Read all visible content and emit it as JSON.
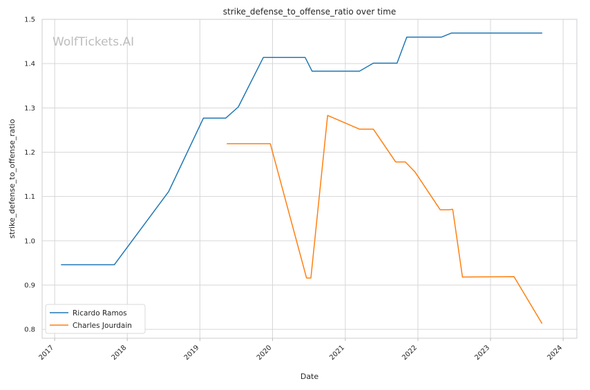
{
  "chart_data": {
    "type": "line",
    "title": "strike_defense_to_offense_ratio over time",
    "xlabel": "Date",
    "ylabel": "strike_defense_to_offense_ratio",
    "watermark": "WolfTickets.AI",
    "xlim": [
      "2016-10-30",
      "2024-03-10"
    ],
    "ylim": [
      0.78,
      1.5
    ],
    "x_ticks": [
      {
        "date": "2017-01-01",
        "label": "2017"
      },
      {
        "date": "2018-01-01",
        "label": "2018"
      },
      {
        "date": "2019-01-01",
        "label": "2019"
      },
      {
        "date": "2020-01-01",
        "label": "2020"
      },
      {
        "date": "2021-01-01",
        "label": "2021"
      },
      {
        "date": "2022-01-01",
        "label": "2022"
      },
      {
        "date": "2023-01-01",
        "label": "2023"
      },
      {
        "date": "2024-01-01",
        "label": "2024"
      }
    ],
    "y_ticks": [
      {
        "value": 0.8,
        "label": "0.8"
      },
      {
        "value": 0.9,
        "label": "0.9"
      },
      {
        "value": 1.0,
        "label": "1.0"
      },
      {
        "value": 1.1,
        "label": "1.1"
      },
      {
        "value": 1.2,
        "label": "1.2"
      },
      {
        "value": 1.3,
        "label": "1.3"
      },
      {
        "value": 1.4,
        "label": "1.4"
      },
      {
        "value": 1.5,
        "label": "1.5"
      }
    ],
    "grid": true,
    "legend_position": "bottom-left",
    "series": [
      {
        "name": "Ricardo Ramos",
        "color": "#1f77b4",
        "points": [
          {
            "x": "2017-02-04",
            "y": 0.946
          },
          {
            "x": "2017-10-28",
            "y": 0.946
          },
          {
            "x": "2018-07-28",
            "y": 1.111
          },
          {
            "x": "2019-01-19",
            "y": 1.277
          },
          {
            "x": "2019-05-11",
            "y": 1.277
          },
          {
            "x": "2019-07-13",
            "y": 1.302
          },
          {
            "x": "2019-11-16",
            "y": 1.414
          },
          {
            "x": "2020-06-13",
            "y": 1.414
          },
          {
            "x": "2020-07-18",
            "y": 1.383
          },
          {
            "x": "2021-03-13",
            "y": 1.383
          },
          {
            "x": "2021-05-22",
            "y": 1.401
          },
          {
            "x": "2021-09-18",
            "y": 1.401
          },
          {
            "x": "2021-11-06",
            "y": 1.46
          },
          {
            "x": "2022-04-30",
            "y": 1.46
          },
          {
            "x": "2022-06-18",
            "y": 1.469
          },
          {
            "x": "2023-09-16",
            "y": 1.469
          }
        ]
      },
      {
        "name": "Charles Jourdain",
        "color": "#ff7f0e",
        "points": [
          {
            "x": "2019-05-18",
            "y": 1.219
          },
          {
            "x": "2019-12-21",
            "y": 1.219
          },
          {
            "x": "2020-06-20",
            "y": 0.916
          },
          {
            "x": "2020-07-12",
            "y": 0.916
          },
          {
            "x": "2020-10-04",
            "y": 1.283
          },
          {
            "x": "2021-03-13",
            "y": 1.252
          },
          {
            "x": "2021-05-22",
            "y": 1.252
          },
          {
            "x": "2021-09-11",
            "y": 1.178
          },
          {
            "x": "2021-10-30",
            "y": 1.178
          },
          {
            "x": "2021-12-18",
            "y": 1.155
          },
          {
            "x": "2022-04-23",
            "y": 1.07
          },
          {
            "x": "2022-06-04",
            "y": 1.07
          },
          {
            "x": "2022-06-25",
            "y": 1.071
          },
          {
            "x": "2022-08-13",
            "y": 0.918
          },
          {
            "x": "2023-04-29",
            "y": 0.919
          },
          {
            "x": "2023-09-16",
            "y": 0.814
          }
        ]
      }
    ]
  }
}
